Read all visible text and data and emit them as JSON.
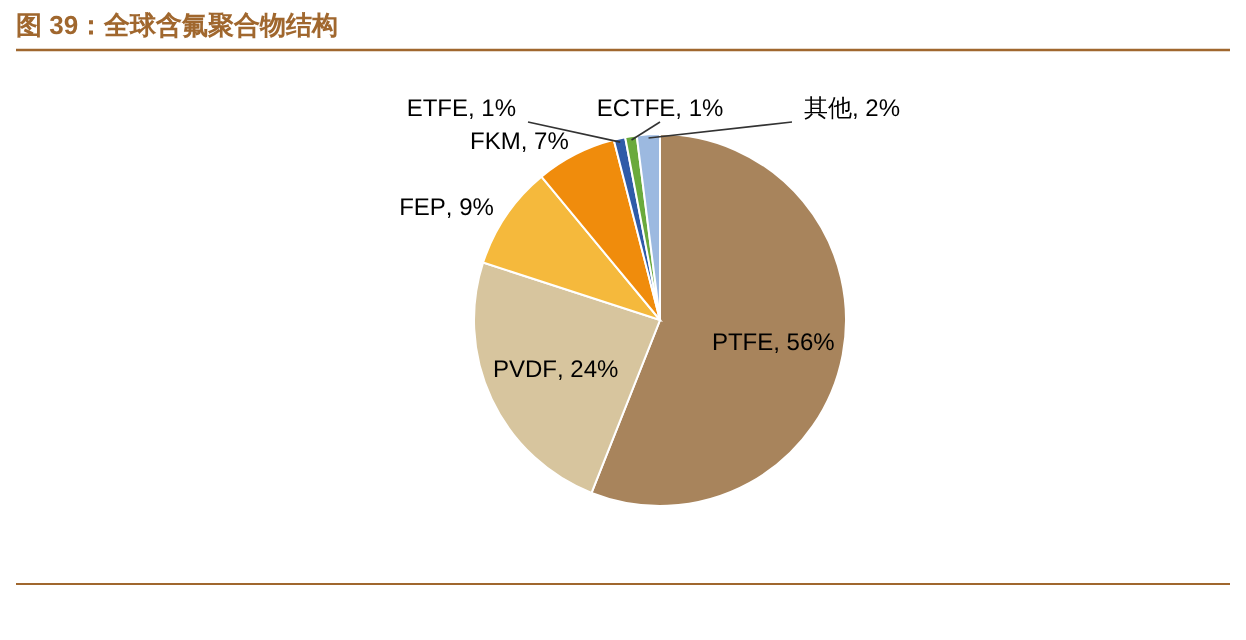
{
  "chart_data": {
    "type": "pie",
    "title": "图 39：全球含氟聚合物结构",
    "categories": [
      "PTFE",
      "PVDF",
      "FEP",
      "FKM",
      "ETFE",
      "ECTFE",
      "其他"
    ],
    "values": [
      56,
      24,
      9,
      7,
      1,
      1,
      2
    ],
    "colors": [
      "#a8845c",
      "#d7c59e",
      "#f5b93c",
      "#f08c0c",
      "#2f5ba8",
      "#6aaa3c",
      "#9cb9e0"
    ],
    "value_labels": [
      ", 56%",
      ", 24%",
      ", 9%",
      ", 7%",
      ", 1%",
      ", 1%",
      ", 2%"
    ],
    "legend": false
  }
}
